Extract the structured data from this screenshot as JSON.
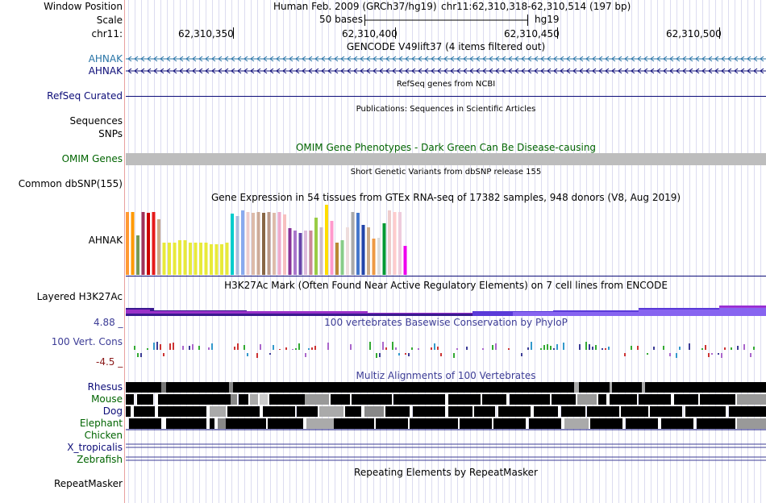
{
  "header": {
    "window_position_label": "Window Position",
    "scale_label": "Scale",
    "chrom_label": "chr11:",
    "assembly": "Human Feb. 2009 (GRCh37/hg19)",
    "position": "chr11:62,310,318-62,310,514 (197 bp)",
    "scale_bar_text": "50 bases",
    "scale_db": "hg19",
    "coordinates": [
      "62,310,350",
      "62,310,400",
      "62,310,450",
      "62,310,500"
    ]
  },
  "tracks": {
    "gencode": {
      "title": "GENCODE V49lift37 (4 items filtered out)",
      "items": [
        "AHNAK",
        "AHNAK"
      ],
      "color": "#2874a6"
    },
    "refseq": {
      "title": "RefSeq genes from NCBI",
      "label": "RefSeq Curated",
      "color": "#0c0c78"
    },
    "publications": {
      "title": "Publications: Sequences in Scientific Articles",
      "label": "Sequences"
    },
    "snps": {
      "label": "SNPs"
    },
    "omim": {
      "title": "OMIM Gene Phenotypes - Dark Green Can Be Disease-causing",
      "label": "OMIM Genes",
      "color": "#006400"
    },
    "dbsnp": {
      "title": "Short Genetic Variants from dbSNP release 155",
      "label": "Common dbSNP(155)"
    },
    "gtex": {
      "title": "Gene Expression in 54 tissues from GTEx RNA-seq of 17382 samples, 948 donors (V8, Aug 2019)",
      "label": "AHNAK",
      "tissue_expression": [
        0.88,
        0.88,
        0.55,
        0.88,
        0.86,
        0.88,
        0.78,
        0.45,
        0.45,
        0.45,
        0.48,
        0.48,
        0.45,
        0.45,
        0.45,
        0.45,
        0.43,
        0.43,
        0.43,
        0.45,
        0.85,
        0.82,
        0.9,
        0.88,
        0.86,
        0.88,
        0.86,
        0.88,
        0.86,
        0.88,
        0.84,
        0.65,
        0.62,
        0.58,
        0.62,
        0.62,
        0.8,
        0.66,
        0.98,
        0.75,
        0.45,
        0.48,
        0.66,
        0.88,
        0.86,
        0.7,
        0.66,
        0.5,
        0.52,
        0.72,
        0.9,
        0.88,
        0.88,
        0.4
      ],
      "tissue_colors": [
        "#ff9933",
        "#ff9900",
        "#779955",
        "#a0335a",
        "#cc0000",
        "#e51a1a",
        "#ccaa88",
        "#e8ea3a",
        "#e8ea3a",
        "#e8ea3a",
        "#e8ea3a",
        "#e8ea3a",
        "#e8ea3a",
        "#e8ea3a",
        "#e8ea3a",
        "#e8ea3a",
        "#e8ea3a",
        "#e8ea3a",
        "#e8ea3a",
        "#e8ea3a",
        "#00cccc",
        "#aabbdd",
        "#88aaee",
        "#eecccc",
        "#ddbbaa",
        "#ccaa99",
        "#886644",
        "#bb9988",
        "#ddbbaa",
        "#eeaacc",
        "#f7c0c0",
        "#883399",
        "#aa77cc",
        "#6644aa",
        "#ddbbdd",
        "#cc8899",
        "#99cc44",
        "#ccbbcc",
        "#ffdd00",
        "#ff99cc",
        "#bb8833",
        "#88cc88",
        "#eedddd",
        "#aaaaaa",
        "#4477cc",
        "#2244aa",
        "#ccaa88",
        "#ee9944",
        "#dddddd",
        "#009933",
        "#eecccc",
        "#ffcccc",
        "#eeccdd",
        "#ee00ee"
      ]
    },
    "h3k27ac": {
      "title": "H3K27Ac Mark (Often Found Near Active Regulatory Elements) on 7 cell lines from ENCODE",
      "label": "Layered H3K27Ac"
    },
    "phylop": {
      "title": "100 vertebrates Basewise Conservation by PhyloP",
      "label": "100 Vert. Cons",
      "max": "4.88 _",
      "min": "-4.5 _",
      "color": "#3c3c96"
    },
    "multiz": {
      "title": "Multiz Alignments of 100 Vertebrates",
      "species": [
        {
          "name": "Rhesus",
          "color": "#0c0c78"
        },
        {
          "name": "Mouse",
          "color": "#006400"
        },
        {
          "name": "Dog",
          "color": "#0c0c78"
        },
        {
          "name": "Elephant",
          "color": "#006400"
        },
        {
          "name": "Chicken",
          "color": "#006400"
        },
        {
          "name": "X_tropicalis",
          "color": "#0c0c78"
        },
        {
          "name": "Zebrafish",
          "color": "#006400"
        }
      ]
    },
    "repeatmasker": {
      "title": "Repeating Elements by RepeatMasker",
      "label": "RepeatMasker"
    }
  }
}
